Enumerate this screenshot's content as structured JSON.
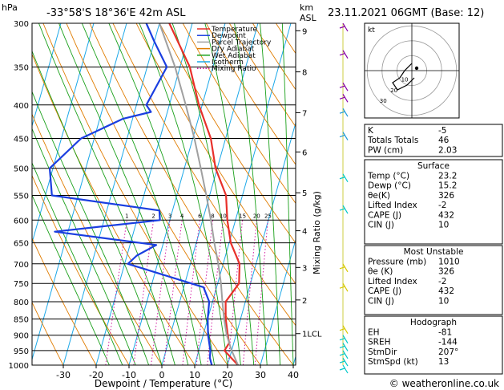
{
  "header": {
    "hpa_label": "hPa",
    "location": "-33°58'S 18°36'E 42m ASL",
    "km_label": "km",
    "asl_label": "ASL",
    "datetime": "23.11.2021 06GMT (Base: 12)"
  },
  "chart_data": {
    "type": "line",
    "title": "-33°58'S 18°36'E 42m ASL",
    "xlabel": "Dewpoint / Temperature (°C)",
    "ylabel": "hPa",
    "right_ylabel": "Mixing Ratio (g/kg)",
    "xlim": [
      -40,
      40
    ],
    "ylim": [
      1000,
      300
    ],
    "x_ticks": [
      "-30",
      "-20",
      "-10",
      "0",
      "10",
      "20",
      "30",
      "40"
    ],
    "pressure_levels": [
      "300",
      "350",
      "400",
      "450",
      "500",
      "550",
      "600",
      "650",
      "700",
      "750",
      "800",
      "850",
      "900",
      "950",
      "1000"
    ],
    "km_ticks": [
      {
        "label": "9",
        "p": 308
      },
      {
        "label": "8",
        "p": 356
      },
      {
        "label": "7",
        "p": 411
      },
      {
        "label": "6",
        "p": 472
      },
      {
        "label": "5",
        "p": 545
      },
      {
        "label": "4",
        "p": 623
      },
      {
        "label": "3",
        "p": 709
      },
      {
        "label": "2",
        "p": 795
      },
      {
        "label": "1LCL",
        "p": 895
      }
    ],
    "mixing_ratio_labels": [
      "1",
      "2",
      "3",
      "4",
      "6",
      "8",
      "10",
      "15",
      "20",
      "25"
    ],
    "legend": {
      "position": "top-left",
      "entries": [
        {
          "name": "Temperature",
          "color": "#e8302a",
          "style": "solid"
        },
        {
          "name": "Dewpoint",
          "color": "#1a3ee0",
          "style": "solid"
        },
        {
          "name": "Parcel Trajectory",
          "color": "#a0a0a0",
          "style": "solid"
        },
        {
          "name": "Dry Adiabat",
          "color": "#e07c00",
          "style": "solid"
        },
        {
          "name": "Wet Adiabat",
          "color": "#1aa01a",
          "style": "solid"
        },
        {
          "name": "Isotherm",
          "color": "#1ca8e8",
          "style": "solid"
        },
        {
          "name": "Mixing Ratio",
          "color": "#d01aa0",
          "style": "dotted"
        }
      ]
    },
    "series": [
      {
        "name": "Temperature",
        "color": "#e8302a",
        "points": [
          [
            23.2,
            1000
          ],
          [
            20.5,
            975
          ],
          [
            17.8,
            950
          ],
          [
            18.6,
            925
          ],
          [
            17.5,
            900
          ],
          [
            15.5,
            850
          ],
          [
            14.0,
            800
          ],
          [
            16.5,
            750
          ],
          [
            15.0,
            700
          ],
          [
            10.5,
            650
          ],
          [
            7.5,
            600
          ],
          [
            5.0,
            550
          ],
          [
            -0.5,
            500
          ],
          [
            -4.5,
            450
          ],
          [
            -11.0,
            400
          ],
          [
            -17.0,
            350
          ],
          [
            -27.0,
            300
          ]
        ]
      },
      {
        "name": "Dewpoint",
        "color": "#1a3ee0",
        "points": [
          [
            15.2,
            1000
          ],
          [
            14.0,
            975
          ],
          [
            13.5,
            950
          ],
          [
            11.5,
            900
          ],
          [
            10.0,
            850
          ],
          [
            9.0,
            800
          ],
          [
            6.0,
            760
          ],
          [
            -19.0,
            700
          ],
          [
            -17.0,
            680
          ],
          [
            -12.0,
            655
          ],
          [
            -44.0,
            625
          ],
          [
            -13.0,
            600
          ],
          [
            -14.0,
            580
          ],
          [
            -48.0,
            550
          ],
          [
            -51.0,
            500
          ],
          [
            -44.0,
            450
          ],
          [
            -33.0,
            420
          ],
          [
            -25.0,
            410
          ],
          [
            -27.0,
            400
          ],
          [
            -24.0,
            350
          ],
          [
            -30.0,
            320
          ],
          [
            -34.0,
            300
          ]
        ]
      },
      {
        "name": "Parcel Trajectory",
        "color": "#a0a0a0",
        "points": [
          [
            23.2,
            1000
          ],
          [
            20.0,
            950
          ],
          [
            17.2,
            900
          ],
          [
            15.0,
            850
          ],
          [
            13.0,
            800
          ],
          [
            11.0,
            750
          ],
          [
            8.5,
            700
          ],
          [
            5.5,
            650
          ],
          [
            2.5,
            600
          ],
          [
            -1.0,
            550
          ],
          [
            -5.0,
            500
          ],
          [
            -9.5,
            450
          ],
          [
            -15.0,
            400
          ],
          [
            -21.5,
            350
          ],
          [
            -30.0,
            300
          ]
        ]
      }
    ]
  },
  "hodograph": {
    "label": "kt",
    "ring_labels": [
      "10",
      "20",
      "30"
    ],
    "path": [
      [
        0,
        -3
      ],
      [
        -3,
        0
      ],
      [
        -5,
        3
      ],
      [
        -8,
        5
      ],
      [
        -6,
        8
      ],
      [
        -2,
        6
      ],
      [
        1,
        3
      ]
    ],
    "storm_motion": [
      2,
      -1
    ]
  },
  "indices": {
    "rows": [
      {
        "label": "K",
        "value": "-5"
      },
      {
        "label": "Totals Totals",
        "value": "46"
      },
      {
        "label": "PW (cm)",
        "value": "2.03"
      }
    ]
  },
  "surface": {
    "title": "Surface",
    "rows": [
      {
        "label": "Temp (°C)",
        "value": "23.2"
      },
      {
        "label": "Dewp (°C)",
        "value": "15.2"
      },
      {
        "label": "θe(K)",
        "value": "326"
      },
      {
        "label": "Lifted Index",
        "value": "-2"
      },
      {
        "label": "CAPE (J)",
        "value": "432"
      },
      {
        "label": "CIN (J)",
        "value": "10"
      }
    ]
  },
  "most_unstable": {
    "title": "Most Unstable",
    "rows": [
      {
        "label": "Pressure (mb)",
        "value": "1010"
      },
      {
        "label": "θe (K)",
        "value": "326"
      },
      {
        "label": "Lifted Index",
        "value": "-2"
      },
      {
        "label": "CAPE (J)",
        "value": "432"
      },
      {
        "label": "CIN (J)",
        "value": "10"
      }
    ]
  },
  "hodograph_table": {
    "title": "Hodograph",
    "rows": [
      {
        "label": "EH",
        "value": "-81"
      },
      {
        "label": "SREH",
        "value": "-144"
      },
      {
        "label": "StmDir",
        "value": "207°"
      },
      {
        "label": "StmSpd (kt)",
        "value": "13"
      }
    ]
  },
  "footer": {
    "credit": "© weatheronline.co.uk"
  },
  "colors": {
    "temperature": "#e8302a",
    "dewpoint": "#1a3ee0",
    "parcel": "#a0a0a0",
    "dry_adiabat": "#e07c00",
    "wet_adiabat": "#1aa01a",
    "isotherm": "#1ca8e8",
    "mixing_ratio": "#d01aa0",
    "wind_barbs": "#00c8c8"
  }
}
